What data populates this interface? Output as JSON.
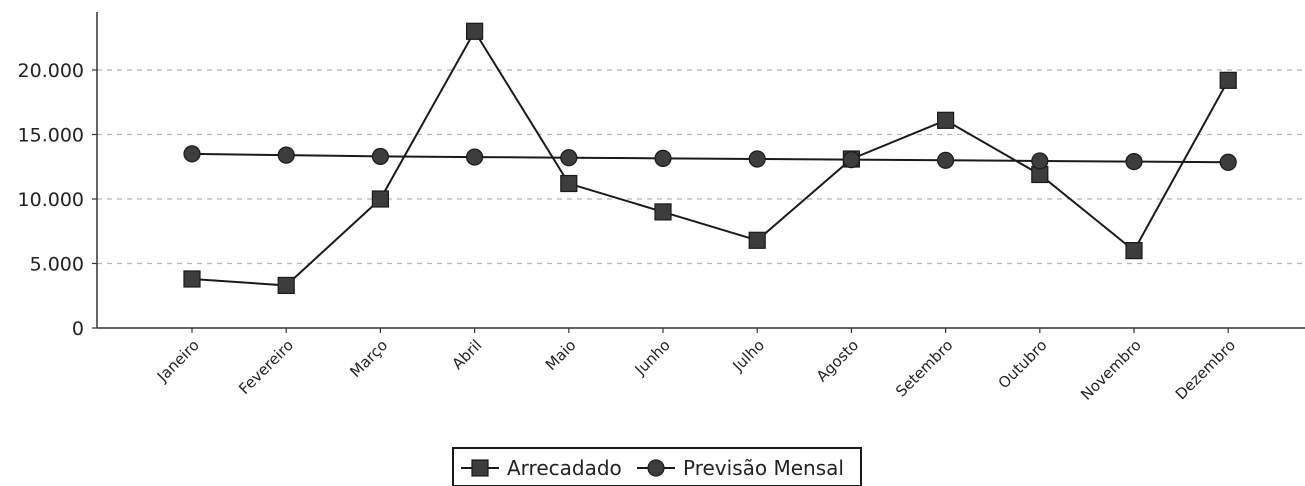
{
  "chart_data": {
    "type": "line",
    "categories": [
      "Janeiro",
      "Fevereiro",
      "Março",
      "Abril",
      "Maio",
      "Junho",
      "Julho",
      "Agosto",
      "Setembro",
      "Outubro",
      "Novembro",
      "Dezembro"
    ],
    "series": [
      {
        "name": "Arrecadado",
        "marker": "square",
        "values": [
          3800,
          3300,
          10000,
          23000,
          11200,
          9000,
          6800,
          13100,
          16100,
          11900,
          6000,
          19200
        ]
      },
      {
        "name": "Previsão Mensal",
        "marker": "circle",
        "values": [
          13500,
          13400,
          13300,
          13250,
          13200,
          13150,
          13100,
          13050,
          13000,
          12950,
          12900,
          12850
        ]
      }
    ],
    "yticks": [
      0,
      5000,
      10000,
      15000,
      20000
    ],
    "ytick_labels": [
      "0",
      "5.000",
      "10.000",
      "15.000",
      "20.000"
    ],
    "ylim": [
      0,
      25000
    ],
    "grid": true,
    "legend_position": "bottom-center",
    "colors": {
      "line": "#1a1a1a",
      "marker_fill": "#3d3d3d",
      "grid": "#b5b5b5",
      "axis": "#333333"
    }
  }
}
